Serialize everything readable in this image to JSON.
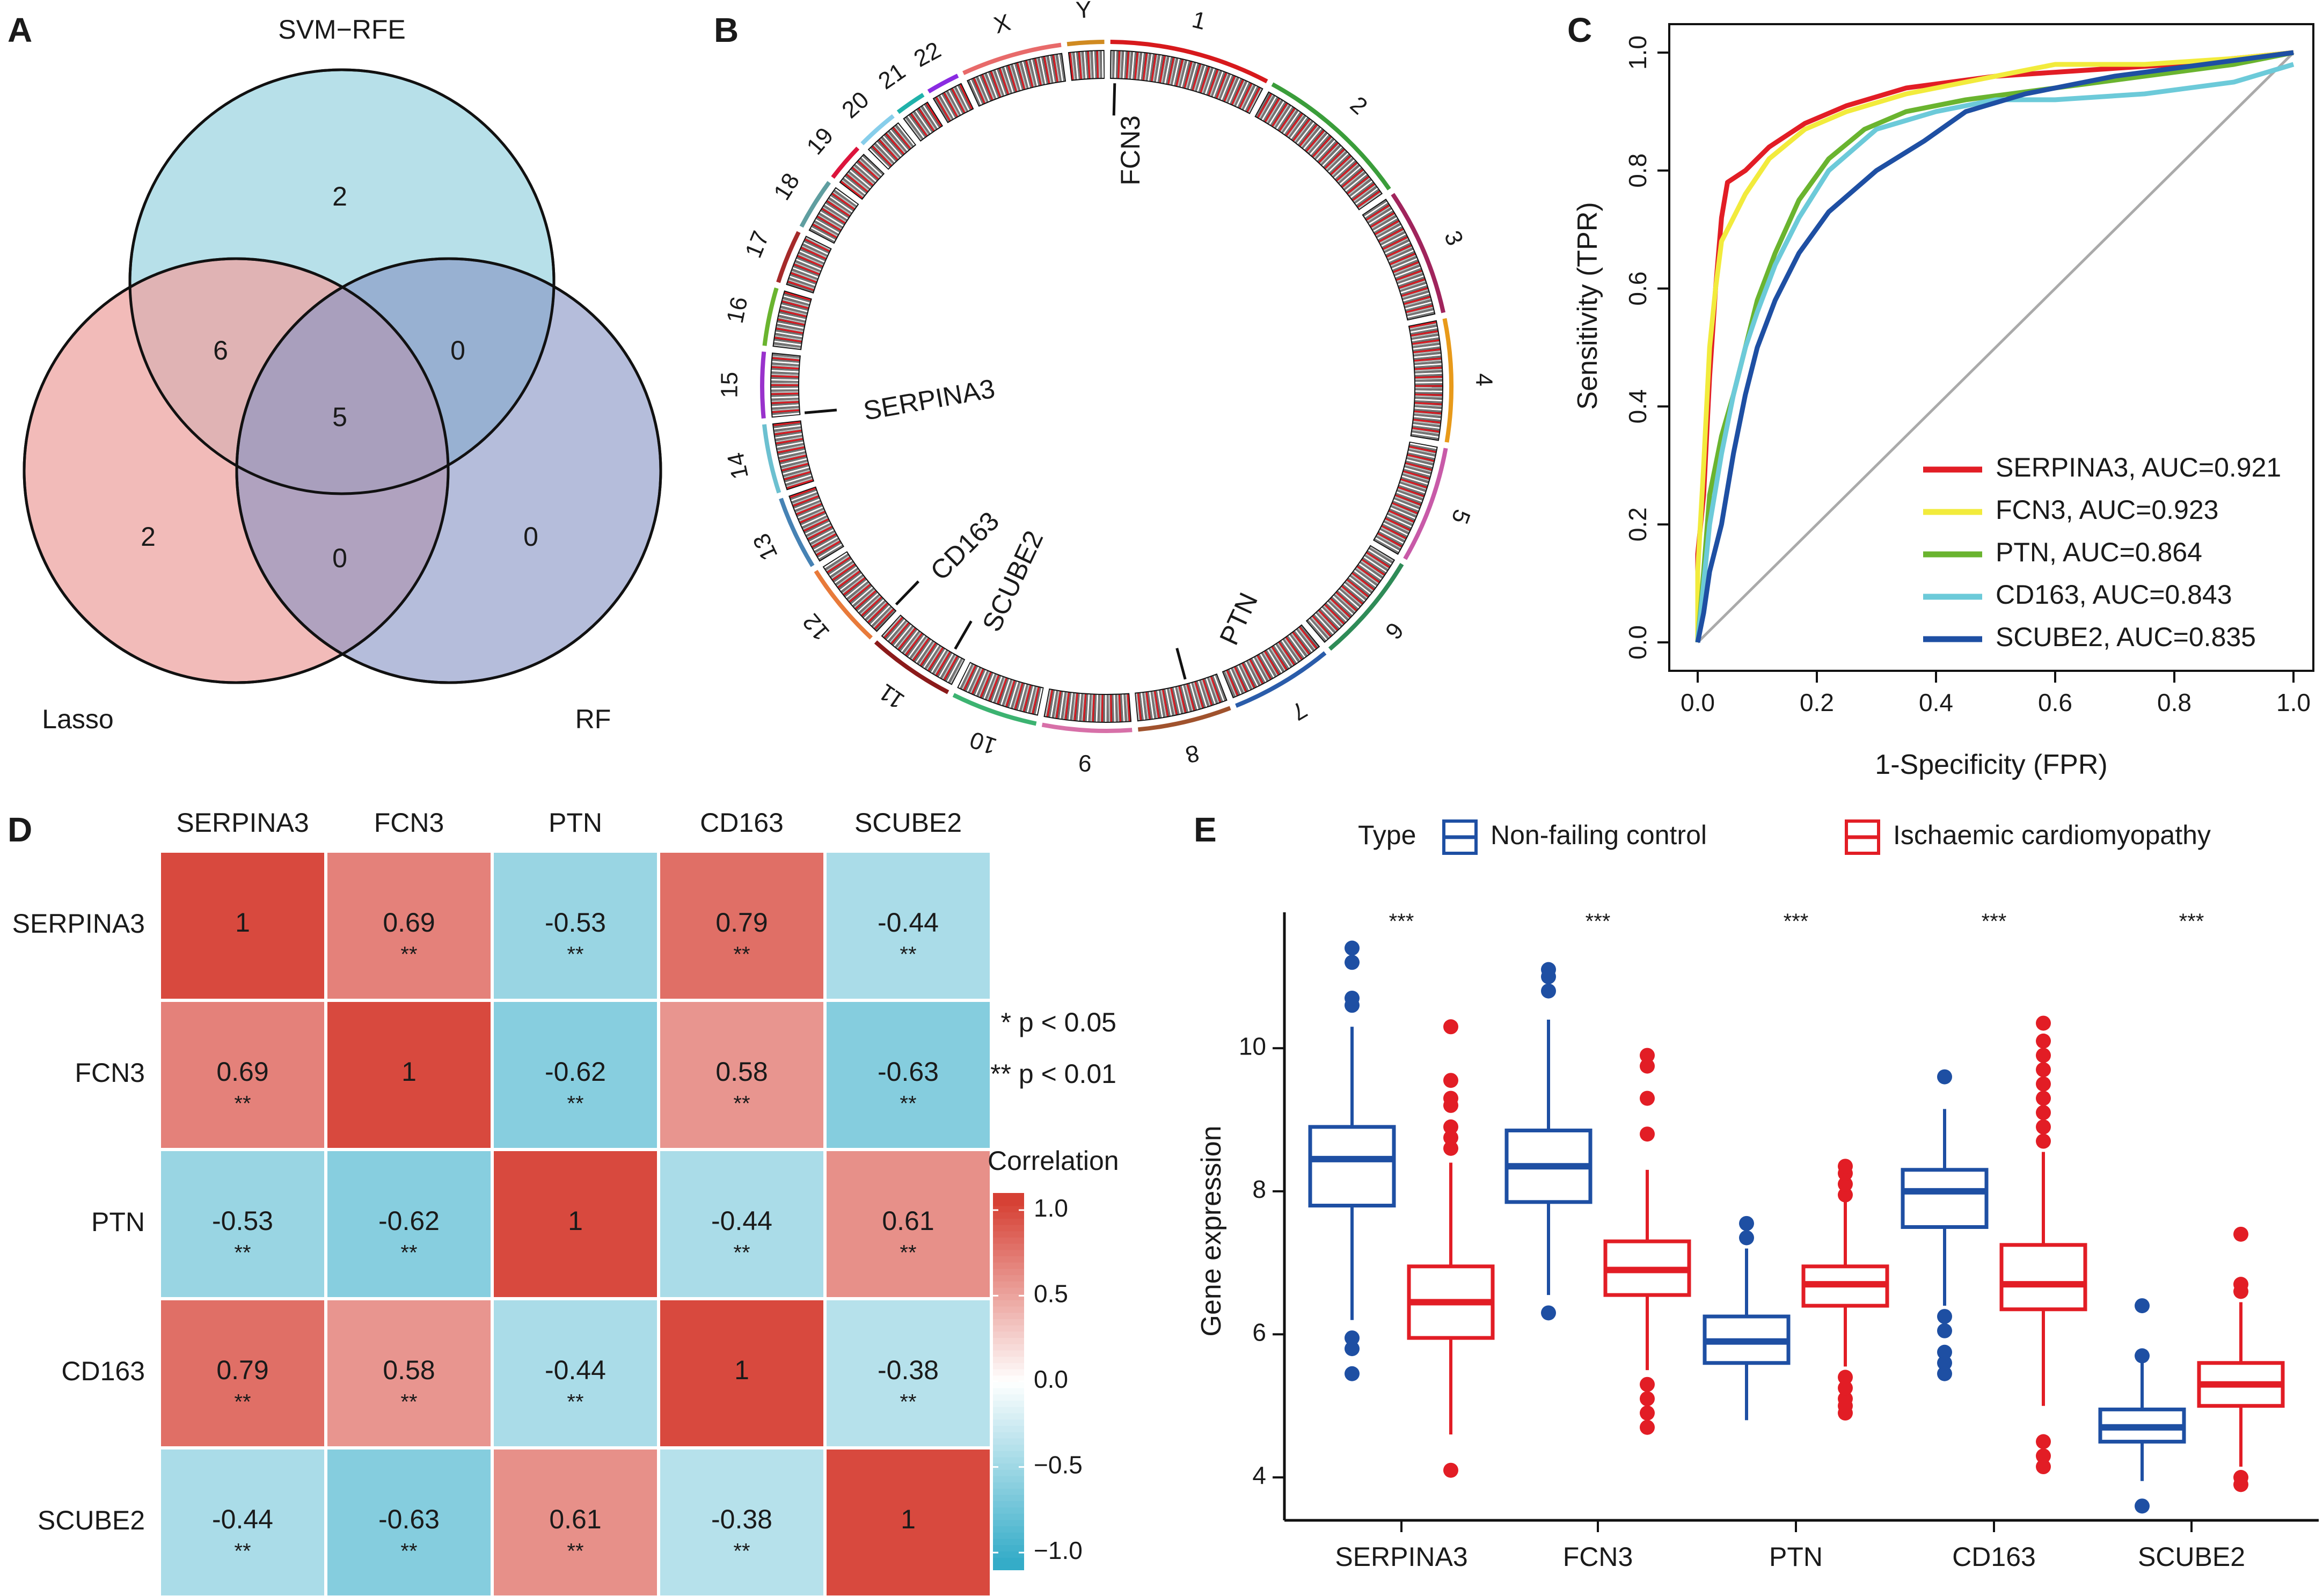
{
  "panels": [
    "A",
    "B",
    "C",
    "D",
    "E"
  ],
  "venn": {
    "sets": [
      "SVM−RFE",
      "Lasso",
      "RF"
    ],
    "regions": {
      "svm_only": "2",
      "lasso_only": "2",
      "rf_only": "0",
      "svm_lasso": "6",
      "svm_rf": "0",
      "lasso_rf": "0",
      "all": "5"
    },
    "colors": {
      "svm": "#9fd6e1",
      "lasso": "#eea4a2",
      "rf": "#8391c3",
      "all_text": "#e02020"
    }
  },
  "circos": {
    "chromosomes": [
      "1",
      "2",
      "3",
      "4",
      "5",
      "6",
      "7",
      "8",
      "9",
      "10",
      "11",
      "12",
      "13",
      "14",
      "15",
      "16",
      "17",
      "18",
      "19",
      "20",
      "21",
      "22",
      "X",
      "Y"
    ],
    "genes": [
      "FCN3",
      "SERPINA3",
      "CD163",
      "SCUBE2",
      "PTN"
    ]
  },
  "chart_data": [
    {
      "type": "line",
      "panel": "C",
      "title": "",
      "xlabel": "1-Specificity (FPR)",
      "ylabel": "Sensitivity (TPR)",
      "xlim": [
        0,
        1
      ],
      "ylim": [
        0,
        1
      ],
      "x_ticks": [
        "0.0",
        "0.2",
        "0.4",
        "0.6",
        "0.8",
        "1.0"
      ],
      "y_ticks": [
        "0.0",
        "0.2",
        "0.4",
        "0.6",
        "0.8",
        "1.0"
      ],
      "legend_position": "bottom-right",
      "series": [
        {
          "name": "SERPINA3, AUC=0.921",
          "color": "#e21d25",
          "points": [
            [
              0,
              0
            ],
            [
              0,
              0.15
            ],
            [
              0.01,
              0.25
            ],
            [
              0.02,
              0.45
            ],
            [
              0.03,
              0.6
            ],
            [
              0.04,
              0.72
            ],
            [
              0.05,
              0.78
            ],
            [
              0.08,
              0.8
            ],
            [
              0.12,
              0.84
            ],
            [
              0.18,
              0.88
            ],
            [
              0.25,
              0.91
            ],
            [
              0.35,
              0.94
            ],
            [
              0.5,
              0.96
            ],
            [
              0.65,
              0.97
            ],
            [
              0.8,
              0.98
            ],
            [
              0.9,
              0.99
            ],
            [
              1,
              1
            ]
          ]
        },
        {
          "name": "FCN3, AUC=0.923",
          "color": "#f2eb3c",
          "points": [
            [
              0,
              0
            ],
            [
              0,
              0.12
            ],
            [
              0.01,
              0.3
            ],
            [
              0.02,
              0.5
            ],
            [
              0.03,
              0.6
            ],
            [
              0.04,
              0.68
            ],
            [
              0.06,
              0.72
            ],
            [
              0.08,
              0.76
            ],
            [
              0.12,
              0.82
            ],
            [
              0.18,
              0.87
            ],
            [
              0.25,
              0.9
            ],
            [
              0.35,
              0.93
            ],
            [
              0.5,
              0.96
            ],
            [
              0.6,
              0.98
            ],
            [
              0.75,
              0.98
            ],
            [
              0.9,
              0.99
            ],
            [
              1,
              1
            ]
          ]
        },
        {
          "name": "PTN, AUC=0.864",
          "color": "#6ab42f",
          "points": [
            [
              0,
              0
            ],
            [
              0.01,
              0.12
            ],
            [
              0.02,
              0.25
            ],
            [
              0.04,
              0.35
            ],
            [
              0.06,
              0.42
            ],
            [
              0.08,
              0.5
            ],
            [
              0.1,
              0.58
            ],
            [
              0.13,
              0.66
            ],
            [
              0.17,
              0.75
            ],
            [
              0.22,
              0.82
            ],
            [
              0.28,
              0.87
            ],
            [
              0.35,
              0.9
            ],
            [
              0.45,
              0.92
            ],
            [
              0.6,
              0.94
            ],
            [
              0.75,
              0.96
            ],
            [
              0.9,
              0.98
            ],
            [
              1,
              1
            ]
          ]
        },
        {
          "name": "CD163, AUC=0.843",
          "color": "#6ccad9",
          "points": [
            [
              0,
              0
            ],
            [
              0.01,
              0.1
            ],
            [
              0.02,
              0.2
            ],
            [
              0.04,
              0.32
            ],
            [
              0.06,
              0.42
            ],
            [
              0.08,
              0.5
            ],
            [
              0.1,
              0.56
            ],
            [
              0.13,
              0.64
            ],
            [
              0.17,
              0.72
            ],
            [
              0.22,
              0.8
            ],
            [
              0.3,
              0.87
            ],
            [
              0.4,
              0.9
            ],
            [
              0.5,
              0.92
            ],
            [
              0.6,
              0.92
            ],
            [
              0.75,
              0.93
            ],
            [
              0.9,
              0.95
            ],
            [
              1,
              0.98
            ]
          ]
        },
        {
          "name": "SCUBE2, AUC=0.835",
          "color": "#1e4fa3",
          "points": [
            [
              0,
              0
            ],
            [
              0.01,
              0.05
            ],
            [
              0.02,
              0.12
            ],
            [
              0.04,
              0.2
            ],
            [
              0.06,
              0.32
            ],
            [
              0.08,
              0.42
            ],
            [
              0.1,
              0.5
            ],
            [
              0.13,
              0.58
            ],
            [
              0.17,
              0.66
            ],
            [
              0.22,
              0.73
            ],
            [
              0.3,
              0.8
            ],
            [
              0.38,
              0.85
            ],
            [
              0.45,
              0.9
            ],
            [
              0.55,
              0.93
            ],
            [
              0.7,
              0.96
            ],
            [
              0.85,
              0.98
            ],
            [
              1,
              1
            ]
          ]
        }
      ]
    },
    {
      "type": "heatmap",
      "panel": "D",
      "rows": [
        "SERPINA3",
        "FCN3",
        "PTN",
        "CD163",
        "SCUBE2"
      ],
      "cols": [
        "SERPINA3",
        "FCN3",
        "PTN",
        "CD163",
        "SCUBE2"
      ],
      "values": [
        [
          "1",
          "0.69",
          "-0.53",
          "0.79",
          "-0.44"
        ],
        [
          "0.69",
          "1",
          "-0.62",
          "0.58",
          "-0.63"
        ],
        [
          "-0.53",
          "-0.62",
          "1",
          "-0.44",
          "0.61"
        ],
        [
          "0.79",
          "0.58",
          "-0.44",
          "1",
          "-0.38"
        ],
        [
          "-0.44",
          "-0.63",
          "0.61",
          "-0.38",
          "1"
        ]
      ],
      "significance": [
        [
          "",
          "**",
          "**",
          "**",
          "**"
        ],
        [
          "**",
          "",
          "**",
          "**",
          "**"
        ],
        [
          "**",
          "**",
          "",
          "**",
          "**"
        ],
        [
          "**",
          "**",
          "**",
          "",
          "**"
        ],
        [
          "**",
          "**",
          "**",
          "**",
          ""
        ]
      ],
      "sig_legend": [
        "* p < 0.05",
        "** p < 0.01"
      ],
      "colorbar_title": "Correlation",
      "colorbar_ticks": [
        "1.0",
        "0.5",
        "0.0",
        "−0.5",
        "−1.0"
      ],
      "colorbar_values": [
        1.0,
        0.5,
        0.0,
        -0.5,
        -1.0
      ],
      "colorbar_range": [
        -1.1,
        1.1
      ]
    },
    {
      "type": "box",
      "panel": "E",
      "legend_title": "Type",
      "legend_position": "top",
      "categories": [
        "SERPINA3",
        "FCN3",
        "PTN",
        "CD163",
        "SCUBE2"
      ],
      "significance": [
        "***",
        "***",
        "***",
        "***",
        "***"
      ],
      "ylabel": "Gene expression",
      "ylim": [
        3.4,
        11.9
      ],
      "y_ticks": [
        "4",
        "6",
        "8",
        "10"
      ],
      "series": [
        {
          "name": "Non-failing control",
          "color": "#1e4fa3",
          "boxes": [
            {
              "q1": 7.8,
              "median": 8.45,
              "q3": 8.9,
              "whisker_low": 6.2,
              "whisker_high": 10.3,
              "outliers": [
                5.45,
                5.8,
                5.95,
                10.6,
                10.7,
                11.2,
                11.4
              ]
            },
            {
              "q1": 7.85,
              "median": 8.35,
              "q3": 8.85,
              "whisker_low": 6.55,
              "whisker_high": 10.4,
              "outliers": [
                6.3,
                10.8,
                11.0,
                11.1
              ]
            },
            {
              "q1": 5.6,
              "median": 5.9,
              "q3": 6.25,
              "whisker_low": 4.8,
              "whisker_high": 7.2,
              "outliers": [
                7.35,
                7.55
              ]
            },
            {
              "q1": 7.5,
              "median": 8.0,
              "q3": 8.3,
              "whisker_low": 6.4,
              "whisker_high": 9.15,
              "outliers": [
                5.45,
                5.6,
                5.75,
                6.05,
                6.25,
                9.6
              ]
            },
            {
              "q1": 4.5,
              "median": 4.7,
              "q3": 4.95,
              "whisker_low": 3.95,
              "whisker_high": 5.6,
              "outliers": [
                3.6,
                5.7,
                6.4
              ]
            }
          ]
        },
        {
          "name": "Ischaemic cardiomyopathy",
          "color": "#e21d25",
          "boxes": [
            {
              "q1": 5.95,
              "median": 6.45,
              "q3": 6.95,
              "whisker_low": 4.6,
              "whisker_high": 8.4,
              "outliers": [
                4.1,
                8.6,
                8.75,
                8.9,
                9.2,
                9.3,
                9.55,
                10.3
              ]
            },
            {
              "q1": 6.55,
              "median": 6.9,
              "q3": 7.3,
              "whisker_low": 5.5,
              "whisker_high": 8.3,
              "outliers": [
                4.7,
                4.9,
                5.1,
                5.3,
                8.8,
                9.3,
                9.75,
                9.9
              ]
            },
            {
              "q1": 6.4,
              "median": 6.7,
              "q3": 6.95,
              "whisker_low": 5.55,
              "whisker_high": 7.85,
              "outliers": [
                4.9,
                5.0,
                5.1,
                5.25,
                5.4,
                7.95,
                8.1,
                8.25,
                8.35
              ]
            },
            {
              "q1": 6.35,
              "median": 6.7,
              "q3": 7.25,
              "whisker_low": 5.0,
              "whisker_high": 8.55,
              "outliers": [
                4.15,
                4.3,
                4.5,
                8.7,
                8.9,
                9.1,
                9.3,
                9.5,
                9.7,
                9.9,
                10.1,
                10.35
              ]
            },
            {
              "q1": 5.0,
              "median": 5.3,
              "q3": 5.6,
              "whisker_low": 4.15,
              "whisker_high": 6.45,
              "outliers": [
                3.9,
                4.0,
                6.6,
                6.7,
                7.4
              ]
            }
          ]
        }
      ]
    }
  ]
}
